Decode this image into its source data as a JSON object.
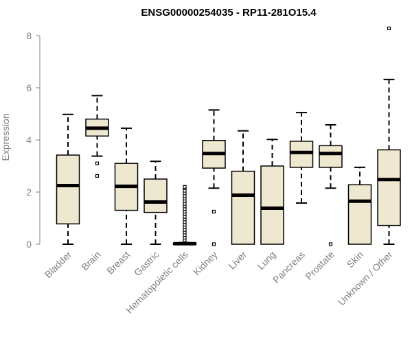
{
  "chart_data": {
    "type": "boxplot",
    "title": "ENSG00000254035 - RP11-281O15.4",
    "xlabel": "",
    "ylabel": "Expression",
    "ylim": [
      0,
      8.5
    ],
    "yticks": [
      0,
      2,
      4,
      6,
      8
    ],
    "grid": false,
    "legend": "none",
    "box_fill": "#efe8d0",
    "line_color": "#000000",
    "categories": [
      "Bladder",
      "Brain",
      "Breast",
      "Gastric",
      "Hematopoietic cells",
      "Kidney",
      "Liver",
      "Lung",
      "Pancreas",
      "Prostate",
      "Skin",
      "Unknown / Other"
    ],
    "boxes": [
      {
        "name": "Bladder",
        "whisker_low": 0,
        "q1": 0.78,
        "median": 2.25,
        "q3": 3.42,
        "whisker_high": 4.98,
        "outliers": []
      },
      {
        "name": "Brain",
        "whisker_low": 3.38,
        "q1": 4.15,
        "median": 4.45,
        "q3": 4.8,
        "whisker_high": 5.7,
        "outliers": [
          3.1,
          2.62
        ]
      },
      {
        "name": "Breast",
        "whisker_low": 0,
        "q1": 1.3,
        "median": 2.22,
        "q3": 3.1,
        "whisker_high": 4.45,
        "outliers": []
      },
      {
        "name": "Gastric",
        "whisker_low": 0,
        "q1": 1.22,
        "median": 1.62,
        "q3": 2.5,
        "whisker_high": 3.18,
        "outliers": []
      },
      {
        "name": "Hematopoietic cells",
        "whisker_low": 0,
        "q1": 0,
        "median": 0.02,
        "q3": 0.04,
        "whisker_high": 0.06,
        "outliers": [
          0.15,
          0.25,
          0.35,
          0.45,
          0.55,
          0.65,
          0.75,
          0.85,
          0.95,
          1.05,
          1.15,
          1.25,
          1.35,
          1.45,
          1.55,
          1.65,
          1.75,
          1.85,
          1.95,
          2.05,
          2.15,
          2.2
        ]
      },
      {
        "name": "Kidney",
        "whisker_low": 2.15,
        "q1": 2.92,
        "median": 3.48,
        "q3": 3.98,
        "whisker_high": 5.15,
        "outliers": [
          1.25,
          0
        ]
      },
      {
        "name": "Liver",
        "whisker_low": 0,
        "q1": 0,
        "median": 1.88,
        "q3": 2.8,
        "whisker_high": 4.35,
        "outliers": []
      },
      {
        "name": "Lung",
        "whisker_low": 0,
        "q1": 0,
        "median": 1.38,
        "q3": 3.0,
        "whisker_high": 4.02,
        "outliers": []
      },
      {
        "name": "Pancreas",
        "whisker_low": 1.58,
        "q1": 2.95,
        "median": 3.52,
        "q3": 3.95,
        "whisker_high": 5.05,
        "outliers": []
      },
      {
        "name": "Prostate",
        "whisker_low": 2.15,
        "q1": 2.95,
        "median": 3.48,
        "q3": 3.78,
        "whisker_high": 4.58,
        "outliers": [
          0
        ]
      },
      {
        "name": "Skin",
        "whisker_low": 0,
        "q1": 0,
        "median": 1.65,
        "q3": 2.28,
        "whisker_high": 2.95,
        "outliers": []
      },
      {
        "name": "Unknown / Other",
        "whisker_low": 0,
        "q1": 0.72,
        "median": 2.48,
        "q3": 3.62,
        "whisker_high": 6.32,
        "outliers": [
          8.28
        ]
      }
    ]
  }
}
